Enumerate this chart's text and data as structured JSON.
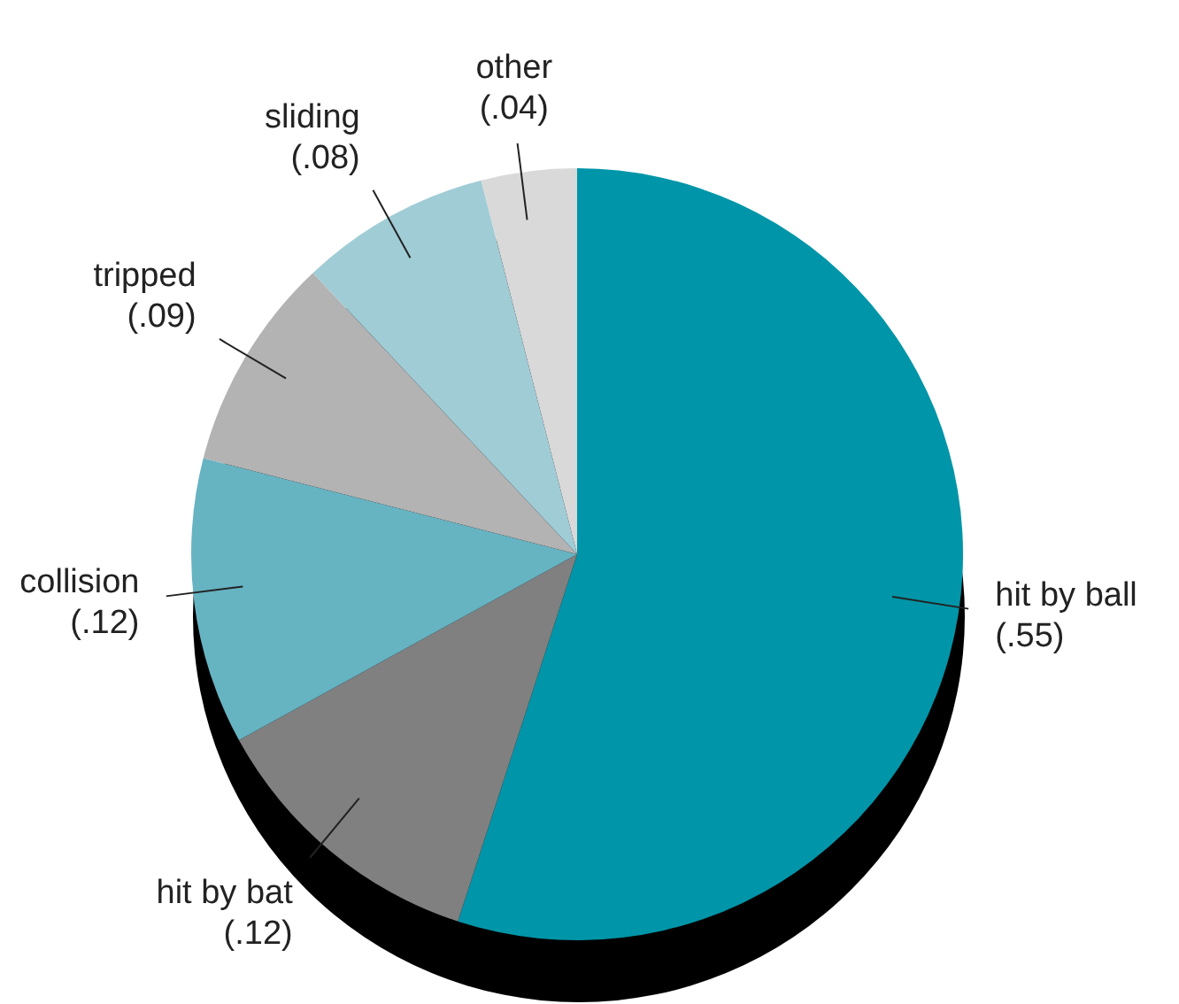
{
  "chart_data": {
    "type": "pie",
    "categories": [
      "hit by ball",
      "hit by bat",
      "collision",
      "tripped",
      "sliding",
      "other"
    ],
    "values": [
      0.55,
      0.12,
      0.12,
      0.09,
      0.08,
      0.04
    ],
    "value_labels": [
      "(.55)",
      "(.12)",
      "(.12)",
      "(.09)",
      "(.08)",
      "(.04)"
    ],
    "colors": [
      "#0095a8",
      "#808080",
      "#66b3c2",
      "#b3b3b3",
      "#a0ccd6",
      "#d9d9d9"
    ],
    "legend": false
  }
}
